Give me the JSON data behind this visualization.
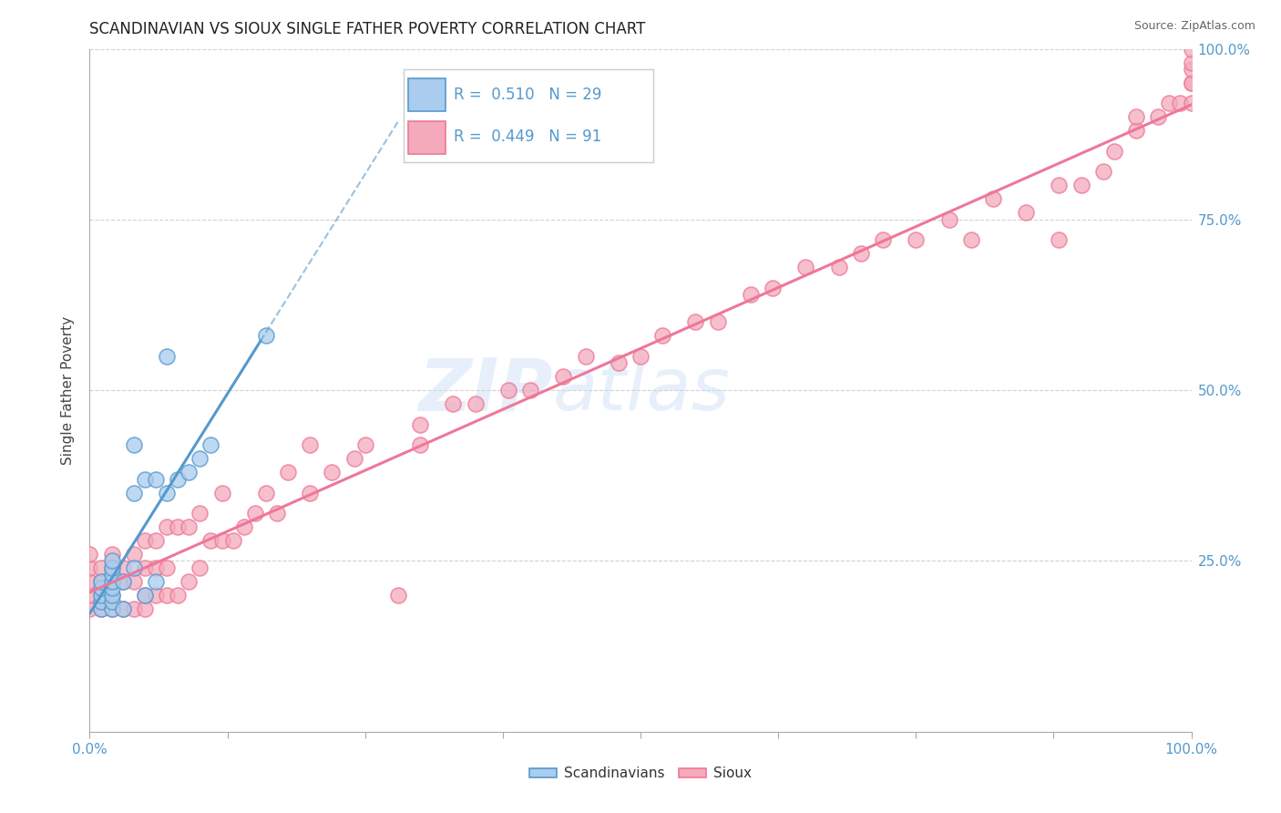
{
  "title": "SCANDINAVIAN VS SIOUX SINGLE FATHER POVERTY CORRELATION CHART",
  "source": "Source: ZipAtlas.com",
  "ylabel": "Single Father Poverty",
  "watermark": "ZIPat las",
  "watermark_zip": "ZIP",
  "watermark_atlas": "atlas",
  "xlim": [
    0.0,
    1.0
  ],
  "ylim": [
    0.0,
    1.0
  ],
  "xtick_positions": [
    0.0,
    0.125,
    0.25,
    0.375,
    0.5,
    0.625,
    0.75,
    0.875,
    1.0
  ],
  "xtick_edge_labels": {
    "0": "0.0%",
    "1": "100.0%"
  },
  "ytick_positions": [
    0.25,
    0.5,
    0.75,
    1.0
  ],
  "ytick_labels": [
    "25.0%",
    "50.0%",
    "75.0%",
    "100.0%"
  ],
  "legend_label1": "Scandinavians",
  "legend_label2": "Sioux",
  "r1": 0.51,
  "n1": 29,
  "r2": 0.449,
  "n2": 91,
  "color1": "#aaccee",
  "color2": "#f4aabb",
  "line_color1": "#5599cc",
  "line_color2": "#ee7799",
  "right_tick_color": "#5599cc",
  "background_color": "#ffffff",
  "title_fontsize": 12,
  "scandinavian_x": [
    0.01,
    0.01,
    0.01,
    0.01,
    0.01,
    0.02,
    0.02,
    0.02,
    0.02,
    0.02,
    0.02,
    0.02,
    0.02,
    0.03,
    0.03,
    0.04,
    0.04,
    0.04,
    0.05,
    0.05,
    0.06,
    0.06,
    0.07,
    0.07,
    0.08,
    0.09,
    0.1,
    0.11,
    0.16
  ],
  "scandinavian_y": [
    0.18,
    0.19,
    0.2,
    0.21,
    0.22,
    0.18,
    0.19,
    0.2,
    0.21,
    0.22,
    0.23,
    0.24,
    0.25,
    0.18,
    0.22,
    0.24,
    0.35,
    0.42,
    0.2,
    0.37,
    0.22,
    0.37,
    0.55,
    0.35,
    0.37,
    0.38,
    0.4,
    0.42,
    0.58
  ],
  "sioux_x": [
    0.0,
    0.0,
    0.0,
    0.0,
    0.0,
    0.01,
    0.01,
    0.01,
    0.01,
    0.02,
    0.02,
    0.02,
    0.02,
    0.02,
    0.03,
    0.03,
    0.03,
    0.04,
    0.04,
    0.04,
    0.05,
    0.05,
    0.05,
    0.05,
    0.06,
    0.06,
    0.06,
    0.07,
    0.07,
    0.07,
    0.08,
    0.08,
    0.09,
    0.09,
    0.1,
    0.1,
    0.11,
    0.12,
    0.12,
    0.13,
    0.14,
    0.15,
    0.16,
    0.17,
    0.18,
    0.2,
    0.2,
    0.22,
    0.24,
    0.25,
    0.28,
    0.3,
    0.3,
    0.33,
    0.35,
    0.38,
    0.4,
    0.43,
    0.45,
    0.48,
    0.5,
    0.52,
    0.55,
    0.57,
    0.6,
    0.62,
    0.65,
    0.68,
    0.7,
    0.72,
    0.75,
    0.78,
    0.8,
    0.82,
    0.85,
    0.88,
    0.88,
    0.9,
    0.92,
    0.93,
    0.95,
    0.95,
    0.97,
    0.98,
    0.99,
    1.0,
    1.0,
    1.0,
    1.0,
    1.0,
    1.0
  ],
  "sioux_y": [
    0.18,
    0.2,
    0.22,
    0.24,
    0.26,
    0.18,
    0.2,
    0.22,
    0.24,
    0.18,
    0.2,
    0.22,
    0.24,
    0.26,
    0.18,
    0.22,
    0.24,
    0.18,
    0.22,
    0.26,
    0.18,
    0.2,
    0.24,
    0.28,
    0.2,
    0.24,
    0.28,
    0.2,
    0.24,
    0.3,
    0.2,
    0.3,
    0.22,
    0.3,
    0.24,
    0.32,
    0.28,
    0.28,
    0.35,
    0.28,
    0.3,
    0.32,
    0.35,
    0.32,
    0.38,
    0.35,
    0.42,
    0.38,
    0.4,
    0.42,
    0.2,
    0.42,
    0.45,
    0.48,
    0.48,
    0.5,
    0.5,
    0.52,
    0.55,
    0.54,
    0.55,
    0.58,
    0.6,
    0.6,
    0.64,
    0.65,
    0.68,
    0.68,
    0.7,
    0.72,
    0.72,
    0.75,
    0.72,
    0.78,
    0.76,
    0.72,
    0.8,
    0.8,
    0.82,
    0.85,
    0.88,
    0.9,
    0.9,
    0.92,
    0.92,
    0.92,
    0.95,
    0.95,
    0.97,
    0.98,
    1.0
  ]
}
